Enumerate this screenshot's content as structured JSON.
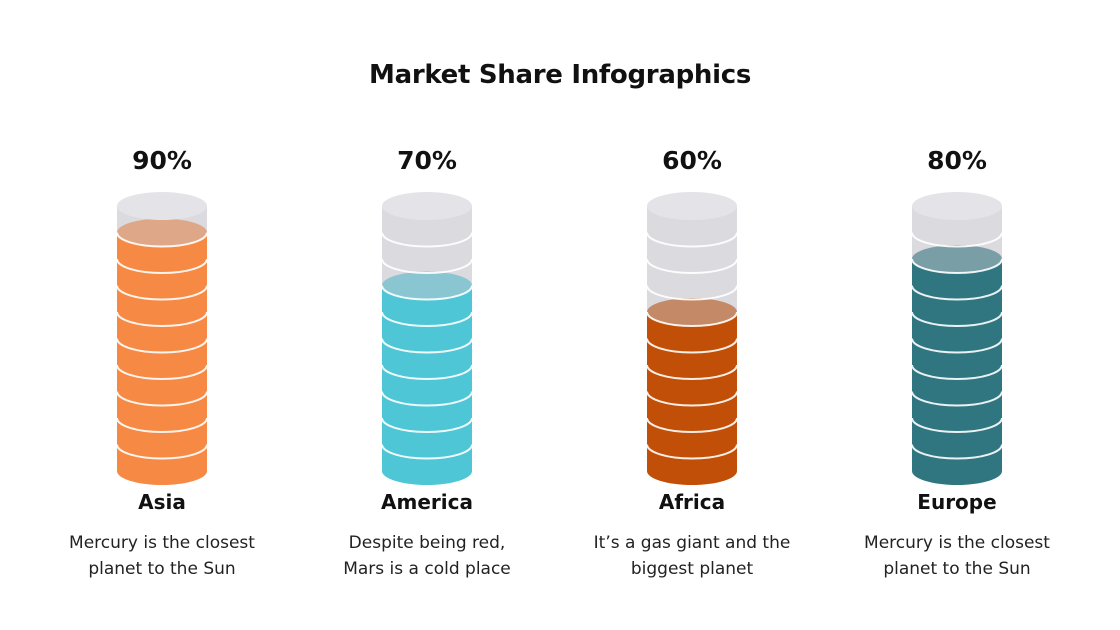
{
  "title": "Market Share Infographics",
  "colors": {
    "empty": "#dadadf",
    "empty_top": "#e4e4e8",
    "line": "#ffffff"
  },
  "items": [
    {
      "percent_label": "90%",
      "value": 0.9,
      "region": "Asia",
      "desc_line1": "Mercury is the closest",
      "desc_line2": "planet to the Sun",
      "color": "#f68a45"
    },
    {
      "percent_label": "70%",
      "value": 0.7,
      "region": "America",
      "desc_line1": "Despite being red,",
      "desc_line2": "Mars is a cold place",
      "color": "#4fc6d6"
    },
    {
      "percent_label": "60%",
      "value": 0.6,
      "region": "Africa",
      "desc_line1": "It’s a gas giant and the",
      "desc_line2": "biggest planet",
      "color": "#c24f07"
    },
    {
      "percent_label": "80%",
      "value": 0.8,
      "region": "Europe",
      "desc_line1": "Mercury is the closest",
      "desc_line2": "planet to the Sun",
      "color": "#2f7680"
    }
  ]
}
